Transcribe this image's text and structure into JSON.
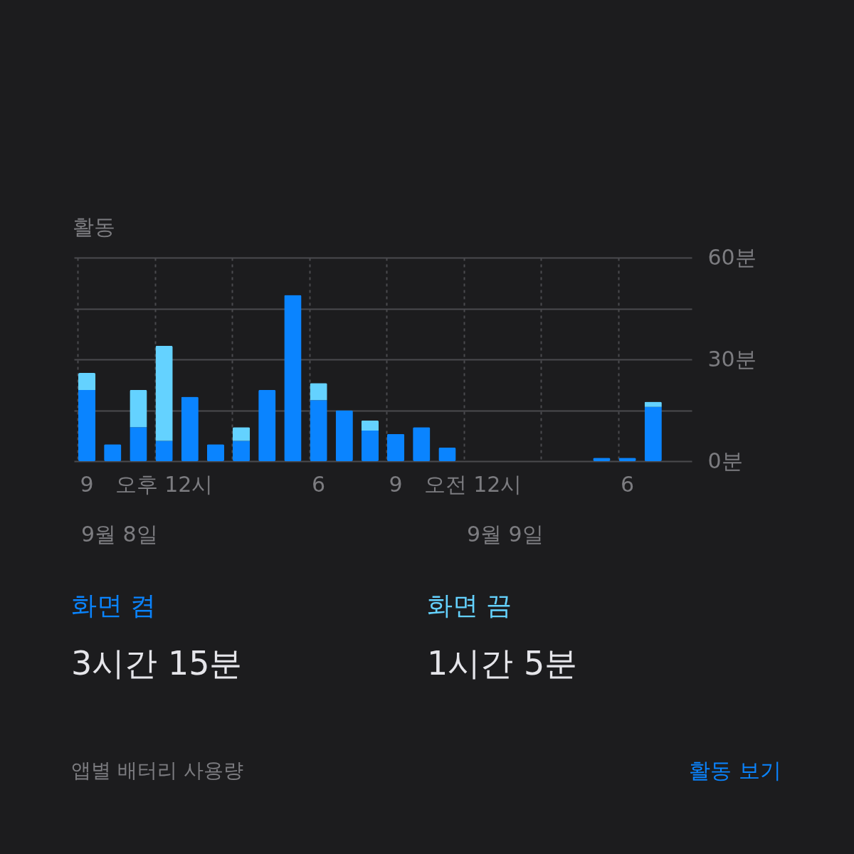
{
  "chart_data": {
    "type": "bar",
    "title": "활동",
    "stacked": true,
    "categories": [
      "9",
      null,
      null,
      "오후 12시",
      null,
      null,
      null,
      null,
      null,
      "6",
      null,
      null,
      "9",
      null,
      null,
      "오전 12시",
      null,
      null,
      null,
      null,
      null,
      "6",
      null,
      null
    ],
    "series": [
      {
        "name": "화면 켬",
        "color": "#0a84ff",
        "values": [
          21,
          5,
          10,
          6,
          19,
          5,
          6,
          21,
          49,
          18,
          15,
          9,
          8,
          10,
          4,
          0,
          0,
          0,
          0,
          0,
          1,
          1,
          16,
          null
        ]
      },
      {
        "name": "화면 끔",
        "color": "#64d2ff",
        "values": [
          5,
          0,
          11,
          28,
          0,
          0,
          4,
          0,
          0,
          5,
          0,
          3,
          0,
          0,
          0,
          0,
          0,
          0,
          0,
          0,
          0,
          0,
          1.5,
          null
        ]
      }
    ],
    "ylim": [
      0,
      60
    ],
    "yticks": [
      {
        "value": 0,
        "label": "0분"
      },
      {
        "value": 15,
        "label": null
      },
      {
        "value": 30,
        "label": "30분"
      },
      {
        "value": 45,
        "label": null
      },
      {
        "value": 60,
        "label": "60분"
      }
    ],
    "grid": true,
    "legend": "bottom",
    "annotations": [
      "9월 8일",
      "9월 9일",
      "3시간 15분",
      "1시간 5분",
      "앱별 배터리 사용량",
      "활동 보기"
    ]
  }
}
